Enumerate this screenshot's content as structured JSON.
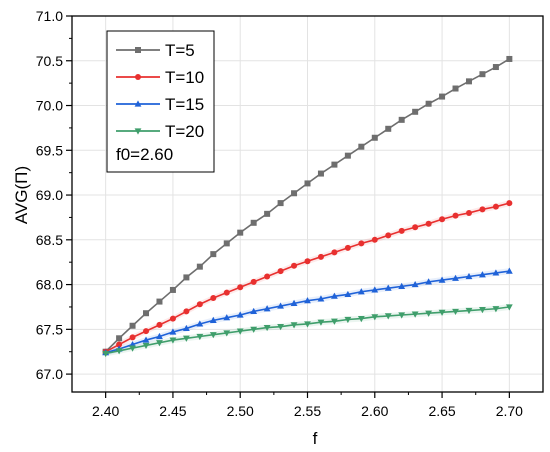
{
  "chart_data": {
    "type": "line",
    "xlabel": "f",
    "ylabel": "AVG(Π)",
    "xlim": [
      2.375,
      2.725
    ],
    "ylim": [
      66.8,
      71.0
    ],
    "xticks": [
      2.4,
      2.45,
      2.5,
      2.55,
      2.6,
      2.65,
      2.7
    ],
    "xtick_labels": [
      "2.40",
      "2.45",
      "2.50",
      "2.55",
      "2.60",
      "2.65",
      "2.70"
    ],
    "yticks": [
      67.0,
      67.5,
      68.0,
      68.5,
      69.0,
      69.5,
      70.0,
      70.5,
      71.0
    ],
    "ytick_labels": [
      "67.0",
      "67.5",
      "68.0",
      "68.5",
      "69.0",
      "69.5",
      "70.0",
      "70.5",
      "71.0"
    ],
    "grid": true,
    "legend_position": "top-left",
    "annotation": "f0=2.60",
    "x": [
      2.4,
      2.41,
      2.42,
      2.43,
      2.44,
      2.45,
      2.46,
      2.47,
      2.48,
      2.49,
      2.5,
      2.51,
      2.52,
      2.53,
      2.54,
      2.55,
      2.56,
      2.57,
      2.58,
      2.59,
      2.6,
      2.61,
      2.62,
      2.63,
      2.64,
      2.65,
      2.66,
      2.67,
      2.68,
      2.69,
      2.7
    ],
    "series": [
      {
        "name": "T=5",
        "color": "#6e6e6e",
        "marker": "square",
        "values": [
          67.25,
          67.4,
          67.54,
          67.68,
          67.81,
          67.94,
          68.08,
          68.2,
          68.34,
          68.46,
          68.58,
          68.69,
          68.79,
          68.91,
          69.02,
          69.13,
          69.24,
          69.34,
          69.44,
          69.54,
          69.64,
          69.74,
          69.84,
          69.93,
          70.02,
          70.1,
          70.19,
          70.27,
          70.35,
          70.43,
          70.52
        ]
      },
      {
        "name": "T=10",
        "color": "#e8302f",
        "marker": "circle",
        "values": [
          67.25,
          67.33,
          67.41,
          67.48,
          67.55,
          67.62,
          67.7,
          67.78,
          67.85,
          67.91,
          67.97,
          68.03,
          68.09,
          68.15,
          68.21,
          68.26,
          68.31,
          68.36,
          68.41,
          68.46,
          68.5,
          68.55,
          68.6,
          68.64,
          68.68,
          68.73,
          68.77,
          68.8,
          68.84,
          68.87,
          68.91
        ]
      },
      {
        "name": "T=15",
        "color": "#1f62d8",
        "marker": "triangle",
        "values": [
          67.24,
          67.28,
          67.33,
          67.38,
          67.42,
          67.47,
          67.51,
          67.56,
          67.6,
          67.63,
          67.66,
          67.7,
          67.73,
          67.76,
          67.79,
          67.82,
          67.84,
          67.87,
          67.89,
          67.92,
          67.94,
          67.96,
          67.98,
          68.0,
          68.03,
          68.05,
          68.07,
          68.09,
          68.11,
          68.13,
          68.15
        ]
      },
      {
        "name": "T=20",
        "color": "#3f9e6b",
        "marker": "triangle-down",
        "values": [
          67.23,
          67.26,
          67.29,
          67.32,
          67.35,
          67.38,
          67.4,
          67.42,
          67.44,
          67.46,
          67.48,
          67.5,
          67.52,
          67.53,
          67.55,
          67.56,
          67.58,
          67.59,
          67.61,
          67.62,
          67.64,
          67.65,
          67.66,
          67.67,
          67.68,
          67.69,
          67.7,
          67.71,
          67.72,
          67.73,
          67.75
        ]
      }
    ]
  }
}
